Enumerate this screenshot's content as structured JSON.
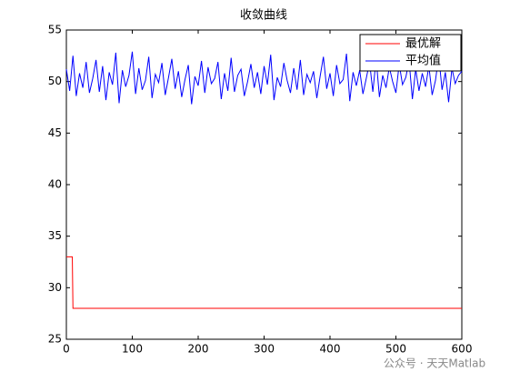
{
  "chart_data": {
    "type": "line",
    "title": "收敛曲线",
    "xlim": [
      0,
      600
    ],
    "xticks": [
      0,
      100,
      200,
      300,
      400,
      500,
      600
    ],
    "ylim": [
      25,
      55
    ],
    "yticks": [
      25,
      30,
      35,
      40,
      45,
      50,
      55
    ],
    "legend": "upper right",
    "series": [
      {
        "name": "最优解",
        "color": "#ff0000",
        "x": [
          0,
          9,
          10,
          600
        ],
        "values": [
          33,
          33,
          28,
          28
        ]
      },
      {
        "name": "平均值",
        "color": "#0000ff",
        "x": [
          0,
          5,
          10,
          15,
          20,
          25,
          30,
          35,
          40,
          45,
          50,
          55,
          60,
          65,
          70,
          75,
          80,
          85,
          90,
          95,
          100,
          105,
          110,
          115,
          120,
          125,
          130,
          135,
          140,
          145,
          150,
          155,
          160,
          165,
          170,
          175,
          180,
          185,
          190,
          195,
          200,
          205,
          210,
          215,
          220,
          225,
          230,
          235,
          240,
          245,
          250,
          255,
          260,
          265,
          270,
          275,
          280,
          285,
          290,
          295,
          300,
          305,
          310,
          315,
          320,
          325,
          330,
          335,
          340,
          345,
          350,
          355,
          360,
          365,
          370,
          375,
          380,
          385,
          390,
          395,
          400,
          405,
          410,
          415,
          420,
          425,
          430,
          435,
          440,
          445,
          450,
          455,
          460,
          465,
          470,
          475,
          480,
          485,
          490,
          495,
          500,
          505,
          510,
          515,
          520,
          525,
          530,
          535,
          540,
          545,
          550,
          555,
          560,
          565,
          570,
          575,
          580,
          585,
          590,
          595,
          600
        ],
        "values": [
          51.2,
          49.1,
          52.5,
          48.6,
          50.8,
          49.4,
          51.9,
          48.9,
          50.3,
          52.1,
          49.0,
          51.5,
          48.2,
          50.9,
          49.7,
          52.8,
          47.9,
          51.1,
          49.5,
          50.6,
          52.9,
          48.8,
          51.3,
          49.2,
          50.1,
          52.4,
          48.4,
          50.7,
          49.9,
          51.8,
          48.7,
          50.4,
          52.2,
          49.3,
          51.0,
          48.5,
          50.2,
          51.6,
          47.8,
          50.5,
          49.6,
          52.0,
          48.9,
          51.4,
          49.8,
          50.3,
          51.9,
          48.3,
          50.8,
          49.1,
          52.3,
          49.0,
          50.6,
          51.2,
          48.6,
          50.0,
          51.7,
          49.4,
          50.9,
          48.8,
          51.5,
          49.7,
          52.6,
          48.2,
          50.4,
          49.5,
          51.8,
          50.1,
          48.9,
          51.3,
          49.2,
          52.1,
          48.7,
          50.7,
          49.9,
          51.0,
          48.4,
          50.5,
          52.4,
          49.3,
          50.8,
          48.6,
          51.6,
          49.8,
          50.2,
          52.7,
          48.1,
          50.9,
          49.6,
          51.1,
          48.8,
          50.3,
          51.9,
          49.0,
          52.2,
          48.5,
          50.6,
          49.4,
          51.4,
          50.0,
          48.9,
          51.7,
          49.7,
          50.4,
          52.0,
          48.3,
          51.2,
          49.1,
          50.8,
          49.5,
          51.5,
          48.7,
          50.1,
          52.5,
          49.2,
          50.9,
          48.0,
          51.3,
          49.8,
          50.6,
          51.0
        ]
      }
    ]
  },
  "watermark": "公众号 · 天天Matlab"
}
